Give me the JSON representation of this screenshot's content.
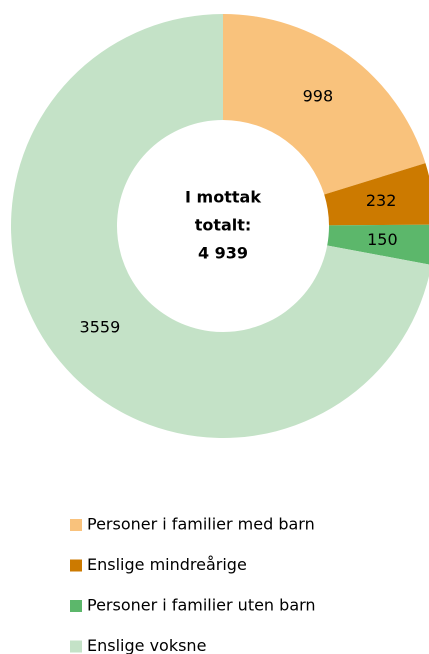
{
  "chart_data": {
    "type": "donut",
    "center_text": [
      "I mottak",
      "totalt:",
      "4 939"
    ],
    "categories": [
      "Personer i familier med barn",
      "Enslige mindreårige",
      "Personer i familier uten barn",
      "Enslige voksne"
    ],
    "values": [
      998,
      232,
      150,
      3559
    ],
    "colors": [
      "#f9c27c",
      "#cc7a00",
      "#5cb76b",
      "#c4e2c7"
    ],
    "legend": "bottom"
  }
}
